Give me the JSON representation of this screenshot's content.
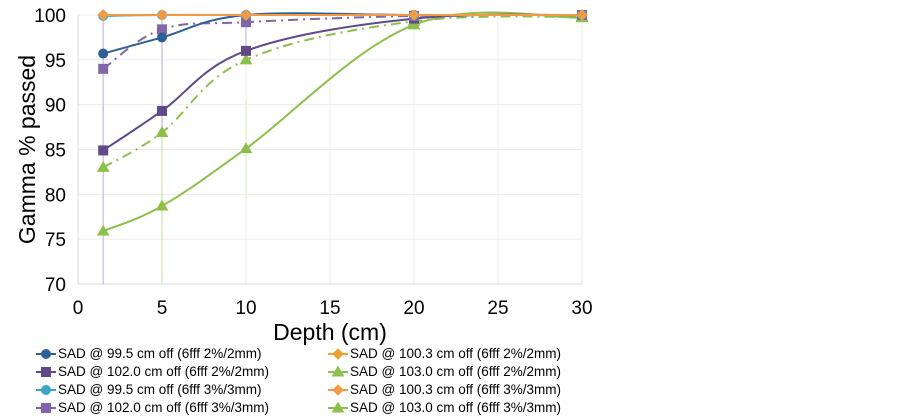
{
  "chart_data": {
    "type": "line",
    "title": "",
    "xlabel": "Depth (cm)",
    "ylabel": "Gamma % passed",
    "xlim": [
      0,
      30
    ],
    "ylim": [
      70,
      100
    ],
    "xticks": [
      "0",
      "5",
      "10",
      "15",
      "20",
      "25",
      "30"
    ],
    "yticks": [
      "70",
      "75",
      "80",
      "85",
      "90",
      "95",
      "100"
    ],
    "grid": true,
    "legend_position": "bottom",
    "x": [
      1.5,
      5,
      10,
      20,
      30
    ],
    "series": [
      {
        "name": "SAD @ 99.5 cm off (6fff 2%/2mm)",
        "color": "#2e5f96",
        "marker": "circle",
        "dash": "solid",
        "values": [
          95.7,
          97.5,
          100,
          100,
          100
        ]
      },
      {
        "name": "SAD @ 100.3 cm off (6fff 2%/2mm)",
        "color": "#f0a030",
        "marker": "diamond",
        "dash": "solid",
        "values": [
          100,
          100,
          100,
          100,
          100
        ]
      },
      {
        "name": "SAD @ 102.0 cm off (6fff 2%/2mm)",
        "color": "#5e4a8a",
        "marker": "square",
        "dash": "solid",
        "values": [
          84.9,
          89.3,
          96.0,
          99.6,
          100
        ]
      },
      {
        "name": "SAD @ 103.0 cm off (6fff 2%/2mm)",
        "color": "#8cc04a",
        "marker": "triangle",
        "dash": "solid",
        "values": [
          75.9,
          78.7,
          85.1,
          98.9,
          99.7
        ]
      },
      {
        "name": "SAD @ 99.5 cm off (6fff 3%/3mm)",
        "color": "#3aa6c4",
        "marker": "circle",
        "dash": "solid",
        "values": [
          99.9,
          100,
          100,
          100,
          100
        ]
      },
      {
        "name": "SAD @ 100.3 cm off (6fff 3%/3mm)",
        "color": "#f39a45",
        "marker": "diamond",
        "dash": "solid",
        "values": [
          100,
          100,
          100,
          100,
          100
        ]
      },
      {
        "name": "SAD @ 102.0 cm off (6fff 3%/3mm)",
        "color": "#8066a8",
        "marker": "square",
        "dash": "dashdot",
        "values": [
          94.0,
          98.4,
          99.2,
          99.9,
          100
        ]
      },
      {
        "name": "SAD @ 103.0 cm off (6fff 3%/3mm)",
        "color": "#8cc04a",
        "marker": "triangle",
        "dash": "dashdot",
        "values": [
          83.0,
          86.9,
          95.0,
          99.3,
          99.8
        ]
      }
    ]
  }
}
